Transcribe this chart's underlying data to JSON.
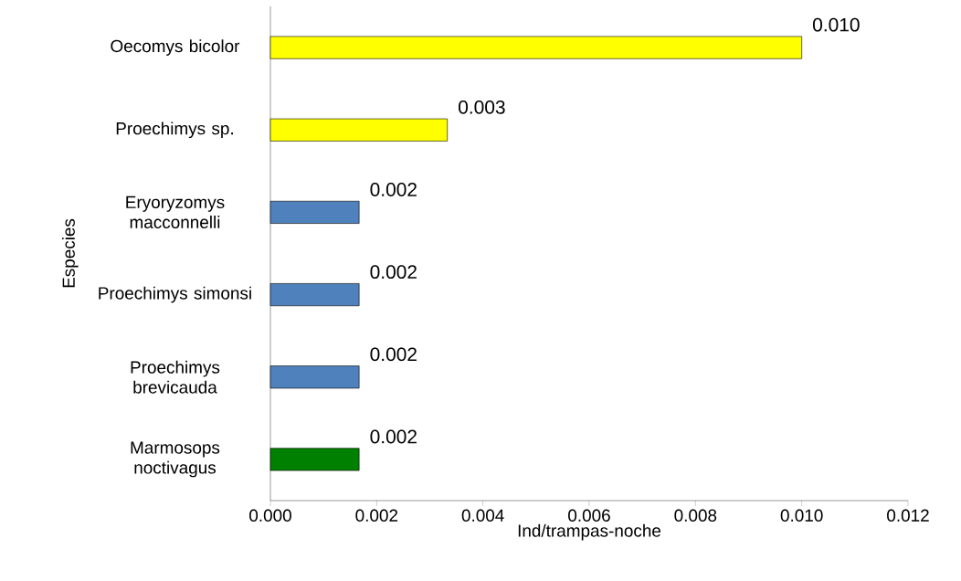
{
  "chart_data": {
    "type": "bar",
    "orientation": "horizontal",
    "categories": [
      "Oecomys bicolor",
      "Proechimys sp.",
      "Eryoryzomys macconnelli",
      "Proechimys simonsi",
      "Proechimys brevicauda",
      "Marmosops noctivagus"
    ],
    "values": [
      0.01,
      0.00333,
      0.00167,
      0.00167,
      0.00167,
      0.00167
    ],
    "colors": [
      "#ffff00",
      "#ffff00",
      "#4f81bd",
      "#4f81bd",
      "#4f81bd",
      "#008000"
    ],
    "value_labels": [
      "0.010",
      "0.003",
      "0.002",
      "0.002",
      "0.002",
      "0.002"
    ],
    "xlabel": "Ind/trampas-noche",
    "ylabel": "Especies",
    "xlim": [
      0,
      0.012
    ],
    "xticks": [
      {
        "value": 0,
        "label": "0.000"
      },
      {
        "value": 0.002,
        "label": "0.002"
      },
      {
        "value": 0.004,
        "label": "0.004"
      },
      {
        "value": 0.006,
        "label": "0.006"
      },
      {
        "value": 0.008,
        "label": "0.008"
      },
      {
        "value": 0.01,
        "label": "0.010"
      },
      {
        "value": 0.012,
        "label": "0.012"
      }
    ],
    "grid": false,
    "legend": false
  }
}
